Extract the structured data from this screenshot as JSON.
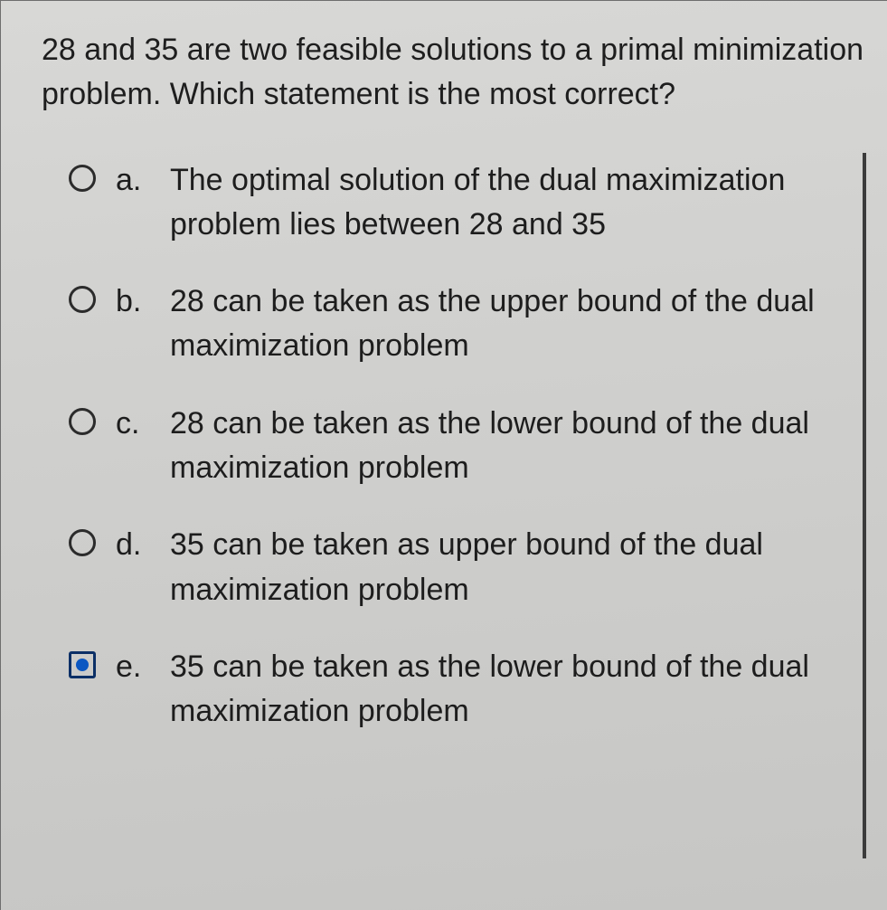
{
  "question": "28 and 35 are two feasible solutions to a primal minimization problem. Which statement is the most correct?",
  "options": [
    {
      "letter": "a.",
      "text": "The optimal solution of the dual maximization problem lies between 28 and 35",
      "selected": false
    },
    {
      "letter": "b.",
      "text": "28 can be taken as the upper bound of the dual maximization problem",
      "selected": false
    },
    {
      "letter": "c.",
      "text": "28 can be taken as the lower bound of the dual maximization problem",
      "selected": false
    },
    {
      "letter": "d.",
      "text": "35 can be taken as upper bound of the dual maximization problem",
      "selected": false
    },
    {
      "letter": "e.",
      "text": "35 can be taken as the lower bound of the dual maximization problem",
      "selected": true
    }
  ],
  "colors": {
    "paper_bg": "#d4d4d2",
    "text": "#1d1d1d",
    "radio_border": "#2b2b2b",
    "selected_border": "#0b2f66",
    "selected_dot": "#0b57c2",
    "rule": "#3b3b3b"
  }
}
